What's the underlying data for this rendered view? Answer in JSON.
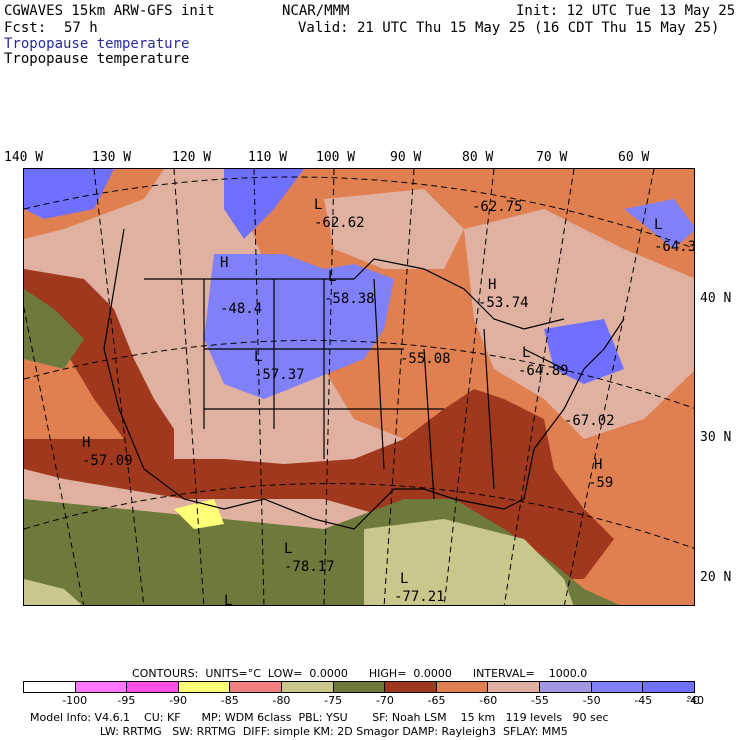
{
  "header": {
    "model": "CGWAVES 15km ARW-GFS init",
    "fcst_label": "Fcst:",
    "fcst_value": "57 h",
    "org": "NCAR/MMM",
    "init": "Init: 12 UTC Tue 13 May 25",
    "valid": "Valid: 21 UTC Thu 15 May 25 (16 CDT Thu 15 May 25)",
    "field_colored": "Tropopause temperature",
    "field_black": "Tropopause temperature"
  },
  "longitudes": [
    "140 W",
    "130 W",
    "120 W",
    "110 W",
    "100 W",
    "90 W",
    "80 W",
    "70 W",
    "60 W"
  ],
  "latitudes": [
    "40 N",
    "30 N",
    "20 N"
  ],
  "map_labels": [
    {
      "hl": "L",
      "value": "-62.62"
    },
    {
      "hl": "",
      "value": "-62.75"
    },
    {
      "hl": "L",
      "value": "-64.3"
    },
    {
      "hl": "H",
      "value": "-48.4"
    },
    {
      "hl": "L",
      "value": "-58.38"
    },
    {
      "hl": "H",
      "value": "-53.74"
    },
    {
      "hl": "L",
      "value": "-57.37"
    },
    {
      "hl": "",
      "value": "-55.08"
    },
    {
      "hl": "L",
      "value": "-64.89"
    },
    {
      "hl": "",
      "value": "-67.02"
    },
    {
      "hl": "H",
      "value": "-57.09"
    },
    {
      "hl": "H",
      "value": "-59"
    },
    {
      "hl": "L",
      "value": "-78.17"
    },
    {
      "hl": "L",
      "value": "-77.21"
    },
    {
      "hl": "L",
      "value": ""
    }
  ],
  "contours": {
    "line": "CONTOURS:  UNITS=°C  LOW=  0.0000      HIGH=  0.0000      INTERVAL=    1000.0"
  },
  "colorbar": {
    "colors": [
      "#ffffff",
      "#ff78ff",
      "#ff50e6",
      "#ffff78",
      "#f08080",
      "#c8c88c",
      "#6e7a3c",
      "#a0381e",
      "#e08050",
      "#e0b0a0",
      "#a098e0",
      "#8080f8",
      "#7070ff"
    ],
    "ticks": [
      "-100",
      "-95",
      "-90",
      "-85",
      "-80",
      "-75",
      "-70",
      "-65",
      "-60",
      "-55",
      "-50",
      "-45",
      "-40",
      "°C"
    ]
  },
  "footer": {
    "line1": "Model Info: V4.6.1    CU: KF      MP: WDM 6class  PBL: YSU       SF: Noah LSM    15 km   119 levels   90 sec",
    "line2": "                    LW: RRTMG   SW: RRTMG  DIFF: simple KM: 2D Smagor DAMP: Rayleigh3  SFLAY: MM5"
  }
}
